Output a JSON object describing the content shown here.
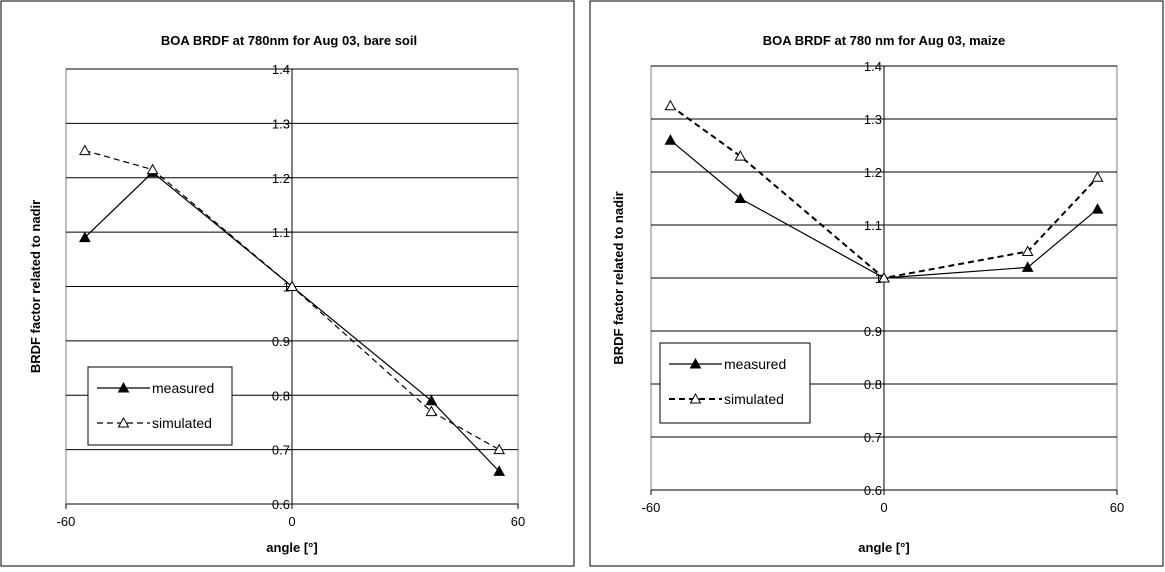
{
  "chart_data": [
    {
      "type": "line",
      "title": "BOA BRDF at 780nm for Aug 03, bare soil",
      "xlabel": "angle [°]",
      "ylabel": "BRDF factor related to nadir",
      "xlim": [
        -60,
        60
      ],
      "ylim": [
        0.6,
        1.4
      ],
      "xticks": [
        -60,
        0,
        60
      ],
      "yticks": [
        0.6,
        0.7,
        0.8,
        0.9,
        1.0,
        1.1,
        1.2,
        1.3,
        1.4
      ],
      "grid": "horizontal",
      "legend_position": "bottom-left",
      "series": [
        {
          "name": "measured",
          "style": "solid",
          "marker": "filled-triangle",
          "color": "#000000",
          "x": [
            -55,
            -37,
            0,
            37,
            55
          ],
          "y": [
            1.09,
            1.21,
            1.0,
            0.79,
            0.66
          ]
        },
        {
          "name": "simulated",
          "style": "dashed",
          "marker": "open-triangle",
          "color": "#000000",
          "x": [
            -55,
            -37,
            0,
            37,
            55
          ],
          "y": [
            1.25,
            1.215,
            1.0,
            0.77,
            0.7
          ]
        }
      ]
    },
    {
      "type": "line",
      "title": "BOA BRDF at 780 nm for Aug 03, maize",
      "xlabel": "angle [°]",
      "ylabel": "BRDF factor related to nadir",
      "xlim": [
        -60,
        60
      ],
      "ylim": [
        0.6,
        1.4
      ],
      "xticks": [
        -60,
        0,
        60
      ],
      "yticks": [
        0.6,
        0.7,
        0.8,
        0.9,
        1.0,
        1.1,
        1.2,
        1.3,
        1.4
      ],
      "grid": "horizontal",
      "legend_position": "middle-left",
      "series": [
        {
          "name": "measured",
          "style": "solid",
          "marker": "filled-triangle",
          "color": "#000000",
          "x": [
            -55,
            -37,
            0,
            37,
            55
          ],
          "y": [
            1.26,
            1.15,
            1.0,
            1.02,
            1.13
          ]
        },
        {
          "name": "simulated",
          "style": "dashed",
          "marker": "open-triangle",
          "color": "#000000",
          "x": [
            -55,
            -37,
            0,
            37,
            55
          ],
          "y": [
            1.325,
            1.23,
            1.0,
            1.05,
            1.19
          ]
        }
      ]
    }
  ]
}
